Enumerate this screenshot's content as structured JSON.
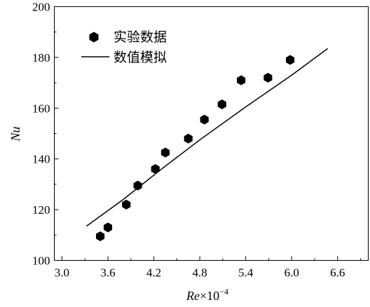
{
  "chart_data": {
    "type": "scatter",
    "xlabel": "Re×10",
    "xlabel_exponent": "−4",
    "ylabel": "Nu",
    "xlim": [
      2.9,
      7.0
    ],
    "ylim": [
      100,
      200
    ],
    "x_ticks": [
      3.0,
      3.6,
      4.2,
      4.8,
      5.4,
      6.0,
      6.6
    ],
    "x_tick_labels": [
      "3.0",
      "3.6",
      "4.2",
      "4.8",
      "5.4",
      "6.0",
      "6.6"
    ],
    "y_ticks": [
      100,
      120,
      140,
      160,
      180,
      200
    ],
    "y_tick_labels": [
      "100",
      "120",
      "140",
      "160",
      "180",
      "200"
    ],
    "grid": false,
    "legend_position": "top-left",
    "series": [
      {
        "name": "实验数据",
        "kind": "scatter",
        "marker": "hexagon",
        "color": "#000000",
        "x": [
          3.5,
          3.6,
          3.84,
          3.99,
          4.22,
          4.35,
          4.65,
          4.86,
          5.09,
          5.34,
          5.69,
          5.98
        ],
        "y": [
          109.5,
          113,
          122,
          129.5,
          136,
          142.5,
          148,
          155.5,
          161.5,
          171,
          172,
          179
        ]
      },
      {
        "name": "数值模拟",
        "kind": "line",
        "color": "#000000",
        "x": [
          3.32,
          3.8,
          4.3,
          4.8,
          5.4,
          6.0,
          6.47
        ],
        "y": [
          113.5,
          124,
          136,
          147.5,
          160.5,
          173,
          183.5
        ]
      }
    ]
  }
}
